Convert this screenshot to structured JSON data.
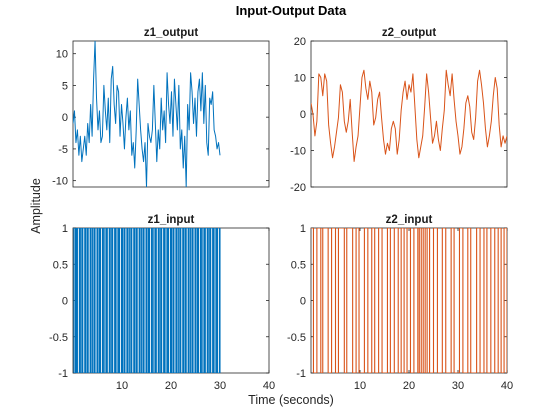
{
  "figure": {
    "title": "Input-Output Data",
    "xlabel": "Time (seconds)",
    "ylabel": "Amplitude"
  },
  "chart_data": [
    {
      "type": "line",
      "title": "z1_output",
      "xlim": [
        0,
        40
      ],
      "ylim": [
        -11,
        12
      ],
      "xticks": [],
      "yticks": [
        -10,
        -5,
        0,
        5,
        10
      ],
      "color": "#0072BD",
      "series": [
        {
          "x": [
            0,
            0.3,
            0.6,
            0.9,
            1.2,
            1.5,
            1.8,
            2.1,
            2.4,
            2.7,
            3.0,
            3.3,
            3.6,
            3.9,
            4.2,
            4.5,
            4.8,
            5.1,
            5.4,
            5.7,
            6.0,
            6.3,
            6.6,
            6.9,
            7.2,
            7.5,
            7.8,
            8.1,
            8.4,
            8.7,
            9.0,
            9.3,
            9.6,
            9.9,
            10.2,
            10.5,
            10.8,
            11.1,
            11.4,
            11.7,
            12.0,
            12.3,
            12.6,
            12.9,
            13.2,
            13.5,
            13.8,
            14.1,
            14.4,
            14.7,
            15.0,
            15.3,
            15.6,
            15.9,
            16.2,
            16.5,
            16.8,
            17.1,
            17.4,
            17.7,
            18.0,
            18.3,
            18.6,
            18.9,
            19.2,
            19.5,
            19.8,
            20.1,
            20.4,
            20.7,
            21.0,
            21.3,
            21.6,
            21.9,
            22.2,
            22.5,
            22.8,
            23.1,
            23.4,
            23.7,
            24.0,
            24.3,
            24.6,
            24.9,
            25.2,
            25.5,
            25.8,
            26.1,
            26.4,
            26.7,
            27.0,
            27.3,
            27.6,
            27.9,
            28.2,
            28.5,
            28.8,
            29.1,
            29.4,
            29.7,
            30.0
          ],
          "y": [
            -1,
            1,
            -4,
            -2,
            -6,
            -3,
            -7,
            -5,
            -3,
            -6,
            -1,
            -4,
            2,
            -3,
            6,
            12,
            3,
            -2,
            1,
            -4,
            -3,
            5,
            1,
            -2,
            3,
            -4,
            6,
            8,
            2,
            -1,
            5,
            4,
            -3,
            2,
            -1,
            -5,
            0,
            3,
            -2,
            1,
            -6,
            -4,
            -8,
            -2,
            6,
            2,
            -2,
            -5,
            -7,
            -4,
            -11,
            -1,
            -3,
            -4,
            -2,
            5,
            -1,
            -7,
            -2,
            -5,
            3,
            -2,
            1,
            -4,
            7,
            2,
            -1,
            4,
            -3,
            6,
            2,
            -2,
            5,
            -5,
            -2,
            -8,
            -3,
            -11,
            2,
            -2,
            7,
            4,
            -1,
            3,
            -3,
            4,
            6,
            1,
            7,
            -1,
            5,
            -4,
            -6,
            3,
            2,
            4,
            -2,
            -3,
            -5,
            -4,
            -6
          ]
        }
      ]
    },
    {
      "type": "line",
      "title": "z2_output",
      "xlim": [
        0,
        40
      ],
      "ylim": [
        -20,
        20
      ],
      "xticks": [],
      "yticks": [
        -20,
        -10,
        0,
        10,
        20
      ],
      "color": "#D95319",
      "series": [
        {
          "x": [
            0,
            0.4,
            0.8,
            1.2,
            1.6,
            2.0,
            2.4,
            2.8,
            3.2,
            3.6,
            4.0,
            4.4,
            4.8,
            5.2,
            5.6,
            6.0,
            6.4,
            6.8,
            7.2,
            7.6,
            8.0,
            8.4,
            8.8,
            9.2,
            9.6,
            10.0,
            10.4,
            10.8,
            11.2,
            11.6,
            12.0,
            12.4,
            12.8,
            13.2,
            13.6,
            14.0,
            14.4,
            14.8,
            15.2,
            15.6,
            16.0,
            16.4,
            16.8,
            17.2,
            17.6,
            18.0,
            18.4,
            18.8,
            19.2,
            19.6,
            20.0,
            20.4,
            20.8,
            21.2,
            21.6,
            22.0,
            22.4,
            22.8,
            23.2,
            23.6,
            24.0,
            24.4,
            24.8,
            25.2,
            25.6,
            26.0,
            26.4,
            26.8,
            27.2,
            27.6,
            28.0,
            28.4,
            28.8,
            29.2,
            29.6,
            30.0,
            30.4,
            30.8,
            31.2,
            31.6,
            32.0,
            32.4,
            32.8,
            33.2,
            33.6,
            34.0,
            34.4,
            34.8,
            35.2,
            35.6,
            36.0,
            36.4,
            36.8,
            37.2,
            37.6,
            38.0,
            38.4,
            38.8,
            39.2,
            39.6,
            40.0
          ],
          "y": [
            3,
            0,
            -6,
            -2,
            11,
            10,
            5,
            11,
            9,
            -3,
            -8,
            -12,
            -9,
            -5,
            -1,
            8,
            6,
            -2,
            -5,
            -2,
            4,
            -5,
            -13,
            -9,
            -6,
            2,
            10,
            12,
            7,
            4,
            9,
            6,
            -3,
            -1,
            4,
            6,
            -1,
            -7,
            -11,
            -8,
            -10,
            -4,
            -2,
            -4,
            -11,
            -7,
            1,
            6,
            9,
            4,
            8,
            6,
            11,
            2,
            -7,
            -12,
            -9,
            -6,
            2,
            11,
            6,
            -1,
            -8,
            -6,
            -2,
            -7,
            -10,
            -4,
            1,
            12,
            8,
            5,
            11,
            4,
            -2,
            -6,
            -11,
            -9,
            -4,
            3,
            5,
            2,
            -5,
            -7,
            -1,
            9,
            12,
            8,
            3,
            -4,
            -9,
            -6,
            -2,
            5,
            10,
            7,
            -3,
            -9,
            -6,
            -8,
            -6
          ]
        }
      ]
    },
    {
      "type": "line",
      "title": "z1_input",
      "xlim": [
        0,
        40
      ],
      "ylim": [
        -1,
        1
      ],
      "xticks": [
        10,
        20,
        30,
        40
      ],
      "yticks": [
        -1,
        -0.5,
        0,
        0.5,
        1
      ],
      "color": "#0072BD",
      "step": true,
      "series": [
        {
          "x": [
            0,
            0.2,
            0.5,
            0.7,
            0.9,
            1.3,
            1.5,
            1.8,
            2.0,
            2.4,
            2.6,
            2.9,
            3.1,
            3.5,
            3.7,
            4.0,
            4.3,
            4.5,
            4.9,
            5.1,
            5.4,
            5.6,
            6.0,
            6.2,
            6.5,
            6.8,
            7.0,
            7.4,
            7.6,
            7.9,
            8.1,
            8.5,
            8.7,
            9.0,
            9.3,
            9.5,
            9.9,
            10.1,
            10.4,
            10.6,
            11.0,
            11.2,
            11.5,
            11.8,
            12.0,
            12.4,
            12.6,
            12.9,
            13.1,
            13.5,
            13.7,
            14.0,
            14.3,
            14.5,
            14.9,
            15.1,
            15.4,
            15.6,
            16.0,
            16.2,
            16.5,
            16.8,
            17.0,
            17.4,
            17.6,
            17.9,
            18.1,
            18.5,
            18.7,
            19.0,
            19.3,
            19.5,
            19.9,
            20.1,
            20.4,
            20.6,
            21.0,
            21.2,
            21.5,
            21.8,
            22.0,
            22.4,
            22.6,
            22.9,
            23.1,
            23.5,
            23.7,
            24.0,
            24.3,
            24.5,
            24.9,
            25.1,
            25.4,
            25.6,
            26.0,
            26.2,
            26.5,
            26.8,
            27.0,
            27.4,
            27.6,
            27.9,
            28.1,
            28.5,
            28.7,
            29.0,
            29.3,
            29.5,
            29.9,
            30.0
          ],
          "y": [
            1,
            -1,
            1,
            -1,
            1,
            -1,
            1,
            -1,
            1,
            -1,
            1,
            -1,
            1,
            -1,
            1,
            -1,
            1,
            -1,
            1,
            -1,
            1,
            -1,
            1,
            -1,
            1,
            -1,
            1,
            -1,
            1,
            -1,
            1,
            -1,
            1,
            -1,
            1,
            -1,
            1,
            -1,
            1,
            -1,
            1,
            -1,
            1,
            -1,
            1,
            -1,
            1,
            -1,
            1,
            -1,
            1,
            -1,
            1,
            -1,
            1,
            -1,
            1,
            -1,
            1,
            -1,
            1,
            -1,
            1,
            -1,
            1,
            -1,
            1,
            -1,
            1,
            -1,
            1,
            -1,
            1,
            -1,
            1,
            -1,
            1,
            -1,
            1,
            -1,
            1,
            -1,
            1,
            -1,
            1,
            -1,
            1,
            -1,
            1,
            -1,
            1,
            -1,
            1,
            -1,
            1,
            -1,
            1,
            -1,
            1,
            -1,
            1,
            -1,
            1,
            -1,
            1,
            -1,
            1,
            -1,
            1,
            -1
          ]
        }
      ]
    },
    {
      "type": "line",
      "title": "z2_input",
      "xlim": [
        0,
        40
      ],
      "ylim": [
        -1,
        1
      ],
      "xticks": [
        10,
        20,
        30,
        40
      ],
      "yticks": [
        -1,
        -0.5,
        0,
        0.5,
        1
      ],
      "color": "#D95319",
      "step": true,
      "series": [
        {
          "x": [
            0,
            0.5,
            1.2,
            2.0,
            2.4,
            3.5,
            4.2,
            5.0,
            5.6,
            6.8,
            7.3,
            8.5,
            9.2,
            9.8,
            10.9,
            11.6,
            12.4,
            13.0,
            13.8,
            14.5,
            15.6,
            16.2,
            17.0,
            17.8,
            18.4,
            19.0,
            19.6,
            20.3,
            21.0,
            21.8,
            22.1,
            22.5,
            22.9,
            23.3,
            23.7,
            24.2,
            25.0,
            25.8,
            26.8,
            27.5,
            28.6,
            29.2,
            30.3,
            31.0,
            32.0,
            32.6,
            33.8,
            34.5,
            35.3,
            35.9,
            36.7,
            37.5,
            38.2,
            38.8,
            39.4,
            40.0
          ],
          "y": [
            1,
            -1,
            1,
            -1,
            1,
            -1,
            1,
            -1,
            1,
            -1,
            1,
            -1,
            1,
            -1,
            1,
            -1,
            1,
            -1,
            1,
            -1,
            1,
            -1,
            1,
            -1,
            1,
            -1,
            1,
            -1,
            1,
            -1,
            1,
            -1,
            1,
            -1,
            1,
            -1,
            1,
            -1,
            1,
            -1,
            1,
            -1,
            1,
            -1,
            1,
            -1,
            1,
            -1,
            1,
            -1,
            1,
            -1,
            1,
            -1,
            1,
            -1
          ]
        }
      ]
    }
  ]
}
